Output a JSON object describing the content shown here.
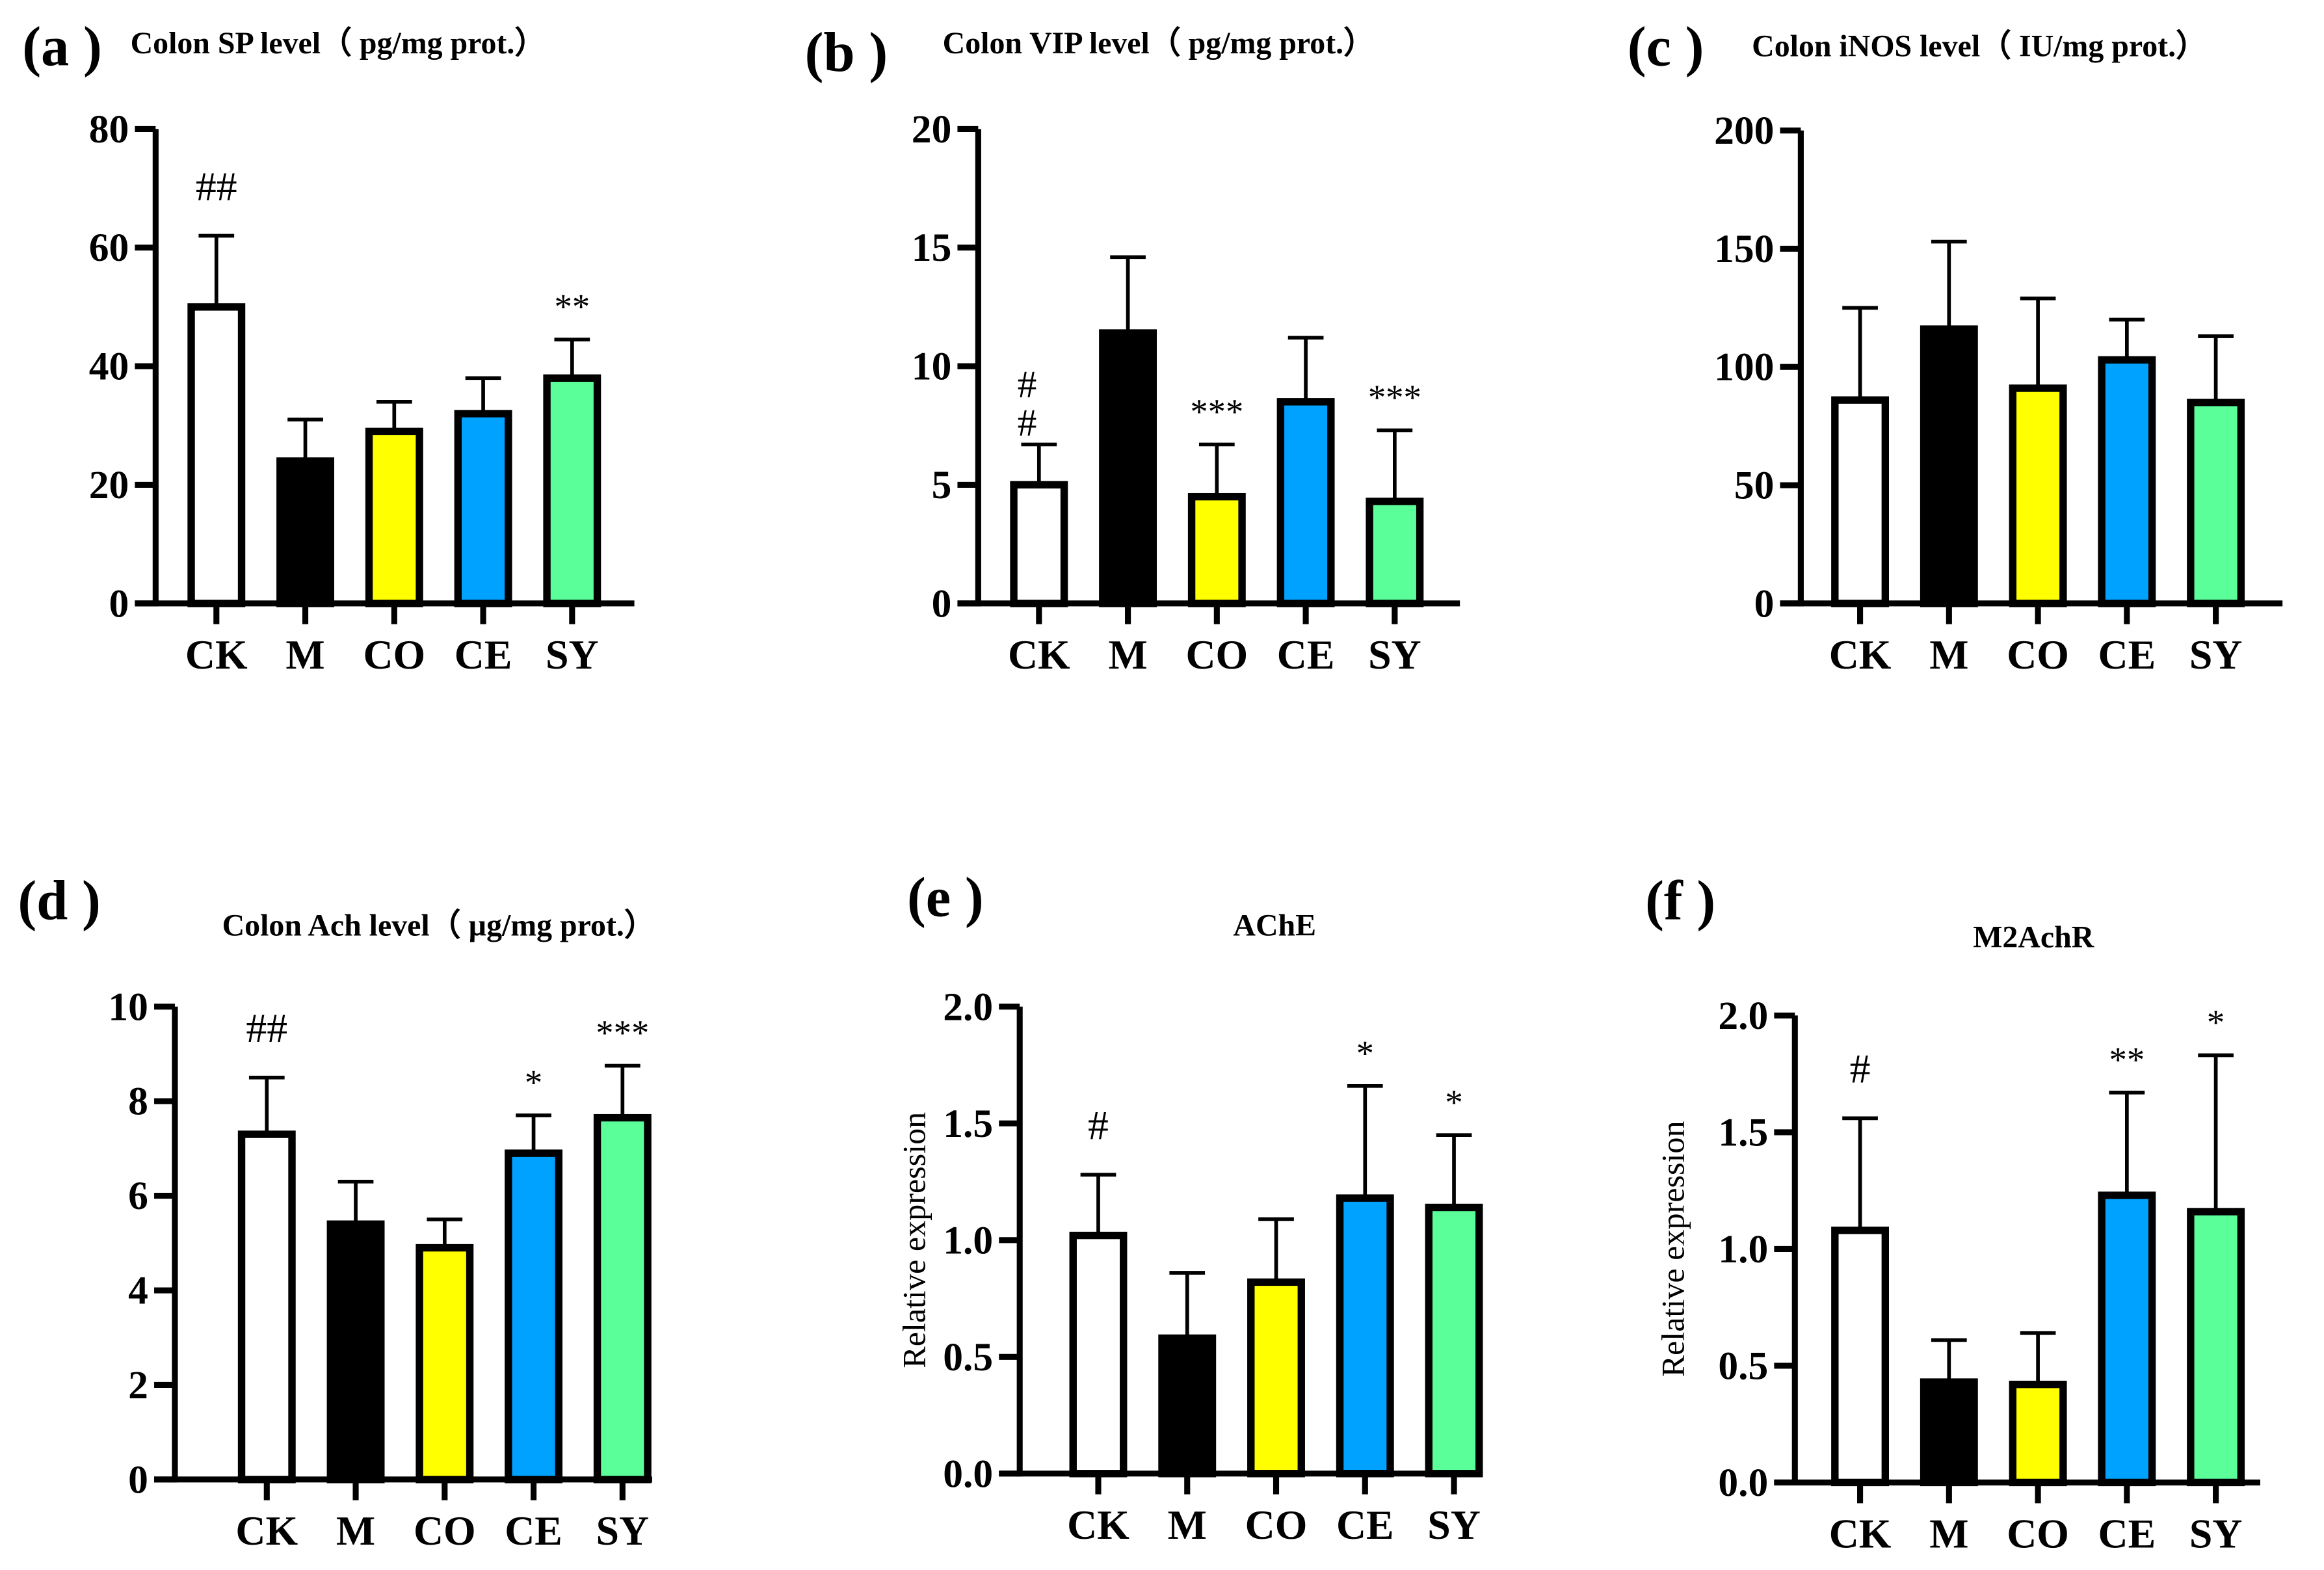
{
  "colors": {
    "CK": "#ffffff",
    "M": "#000000",
    "CO": "#ffff00",
    "CE": "#00a2ff",
    "SY": "#5bff99"
  },
  "chart_data": [
    {
      "type": "bar",
      "panel": "(a )",
      "title": "Colon SP level（ pg/mg prot.）",
      "ylabel": "",
      "ylim": [
        0,
        80
      ],
      "yticks": [
        "0",
        "20",
        "40",
        "60",
        "80"
      ],
      "ytick_values": [
        0,
        20,
        40,
        60,
        80
      ],
      "categories": [
        "CK",
        "M",
        "CO",
        "CE",
        "SY"
      ],
      "values": [
        50,
        24,
        29,
        32,
        38
      ],
      "error_upper": [
        62,
        31,
        34,
        38,
        44.5
      ],
      "annotations": [
        "##",
        "",
        "",
        "",
        "**"
      ]
    },
    {
      "type": "bar",
      "panel": "(b )",
      "title": "Colon VIP level（ pg/mg prot.）",
      "ylabel": "",
      "ylim": [
        0,
        20
      ],
      "yticks": [
        "0",
        "5",
        "10",
        "15",
        "20"
      ],
      "ytick_values": [
        0,
        5,
        10,
        15,
        20
      ],
      "categories": [
        "CK",
        "M",
        "CO",
        "CE",
        "SY"
      ],
      "values": [
        5,
        11.4,
        4.5,
        8.5,
        4.3
      ],
      "error_upper": [
        6.7,
        14.6,
        6.7,
        11.2,
        7.3
      ],
      "annotations": [
        "#\n#",
        "",
        "***",
        "",
        "***"
      ]
    },
    {
      "type": "bar",
      "panel": "(c )",
      "title": "Colon iNOS level（ IU/mg prot.）",
      "ylabel": "",
      "ylim": [
        0,
        200
      ],
      "yticks": [
        "0",
        "50",
        "100",
        "150",
        "200"
      ],
      "ytick_values": [
        0,
        50,
        100,
        150,
        200
      ],
      "categories": [
        "CK",
        "M",
        "CO",
        "CE",
        "SY"
      ],
      "values": [
        86,
        116,
        91,
        103,
        85
      ],
      "error_upper": [
        125,
        153,
        129,
        120,
        113
      ],
      "annotations": [
        "",
        "",
        "",
        "",
        ""
      ]
    },
    {
      "type": "bar",
      "panel": "(d )",
      "title": "Colon Ach level（ µg/mg prot.）",
      "ylabel": "",
      "ylim": [
        0,
        10
      ],
      "yticks": [
        "0",
        "2",
        "4",
        "6",
        "8",
        "10"
      ],
      "ytick_values": [
        0,
        2,
        4,
        6,
        8,
        10
      ],
      "categories": [
        "CK",
        "M",
        "CO",
        "CE",
        "SY"
      ],
      "values": [
        7.3,
        5.4,
        4.9,
        6.9,
        7.65
      ],
      "error_upper": [
        8.5,
        6.3,
        5.5,
        7.7,
        8.75
      ],
      "annotations": [
        "##",
        "",
        "",
        "*",
        "***"
      ]
    },
    {
      "type": "bar",
      "panel": "(e )",
      "title": "AChE",
      "ylabel": "Relative expression",
      "ylim": [
        0,
        2
      ],
      "yticks": [
        "0.0",
        "0.5",
        "1.0",
        "1.5",
        "2.0"
      ],
      "ytick_values": [
        0,
        0.5,
        1,
        1.5,
        2
      ],
      "categories": [
        "CK",
        "M",
        "CO",
        "CE",
        "SY"
      ],
      "values": [
        1.02,
        0.58,
        0.82,
        1.18,
        1.14
      ],
      "error_upper": [
        1.28,
        0.86,
        1.09,
        1.66,
        1.45
      ],
      "annotations": [
        "#",
        "",
        "",
        "*",
        "*"
      ]
    },
    {
      "type": "bar",
      "panel": "(f )",
      "title": "M2AchR",
      "ylabel": "Relative expression",
      "ylim": [
        0,
        2
      ],
      "yticks": [
        "0.0",
        "0.5",
        "1.0",
        "1.5",
        "2.0"
      ],
      "ytick_values": [
        0,
        0.5,
        1,
        1.5,
        2
      ],
      "categories": [
        "CK",
        "M",
        "CO",
        "CE",
        "SY"
      ],
      "values": [
        1.08,
        0.43,
        0.42,
        1.23,
        1.16
      ],
      "error_upper": [
        1.56,
        0.61,
        0.64,
        1.67,
        1.83
      ],
      "annotations": [
        "#",
        "",
        "",
        "**",
        "*"
      ]
    }
  ]
}
